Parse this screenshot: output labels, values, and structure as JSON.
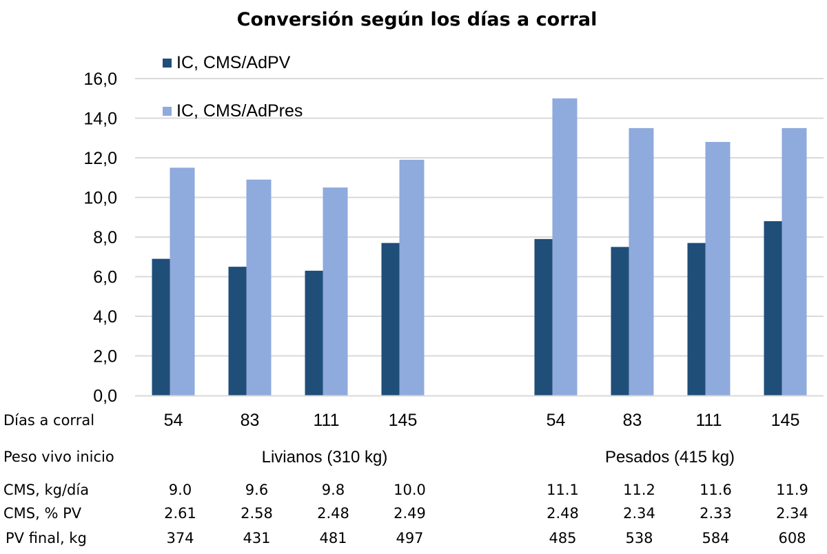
{
  "chart_data": {
    "type": "bar",
    "title": "Conversión según los días a corral",
    "xlabel": "Días a corral",
    "ylabel": "",
    "ylim": [
      0,
      16
    ],
    "yticks": [
      "0,0",
      "2,0",
      "4,0",
      "6,0",
      "8,0",
      "10,0",
      "12,0",
      "14,0",
      "16,0"
    ],
    "grid": true,
    "legend_position": "top-left",
    "categories": [
      "54",
      "83",
      "111",
      "145",
      "",
      "54",
      "83",
      "111",
      "145"
    ],
    "series": [
      {
        "name": "IC, CMS/AdPV",
        "color": "#1f4e79",
        "values": [
          6.9,
          6.5,
          6.3,
          7.7,
          null,
          7.9,
          7.5,
          7.7,
          8.8
        ]
      },
      {
        "name": "IC, CMS/AdPres",
        "color": "#8faadc",
        "values": [
          11.5,
          10.9,
          10.5,
          11.9,
          null,
          15.0,
          13.5,
          12.8,
          13.5
        ]
      }
    ],
    "table": {
      "rows": [
        {
          "label": "Días a corral"
        },
        {
          "label": "Peso vivo inicio",
          "groups": [
            "Livianos (310 kg)",
            "Pesados (415 kg)"
          ]
        },
        {
          "label": "CMS, kg/día",
          "values": [
            "9.0",
            "9.6",
            "9.8",
            "10.0",
            "",
            "11.1",
            "11.2",
            "11.6",
            "11.9"
          ]
        },
        {
          "label": "CMS, % PV",
          "values": [
            "2.61",
            "2.58",
            "2.48",
            "2.49",
            "",
            "2.48",
            "2.34",
            "2.33",
            "2.34"
          ]
        },
        {
          "label": "PV final, kg",
          "values": [
            "374",
            "431",
            "481",
            "497",
            "",
            "485",
            "538",
            "584",
            "608"
          ]
        }
      ]
    }
  }
}
